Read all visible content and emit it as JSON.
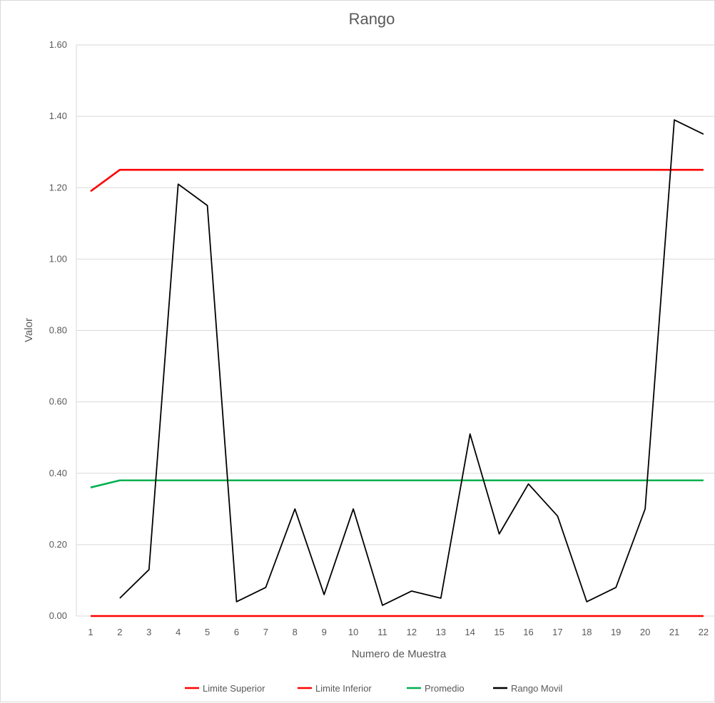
{
  "chart_data": {
    "type": "line",
    "title": "Rango",
    "xlabel": "Numero de Muestra",
    "ylabel": "Valor",
    "ylim": [
      0,
      1.6
    ],
    "yticks": [
      "0.00",
      "0.20",
      "0.40",
      "0.60",
      "0.80",
      "1.00",
      "1.20",
      "1.40",
      "1.60"
    ],
    "x": [
      1,
      2,
      3,
      4,
      5,
      6,
      7,
      8,
      9,
      10,
      11,
      12,
      13,
      14,
      15,
      16,
      17,
      18,
      19,
      20,
      21,
      22
    ],
    "grid": true,
    "legend_position": "bottom",
    "series": [
      {
        "name": "Limite Superior",
        "color": "#ff0000",
        "values": [
          1.19,
          1.25,
          1.25,
          1.25,
          1.25,
          1.25,
          1.25,
          1.25,
          1.25,
          1.25,
          1.25,
          1.25,
          1.25,
          1.25,
          1.25,
          1.25,
          1.25,
          1.25,
          1.25,
          1.25,
          1.25,
          1.25
        ]
      },
      {
        "name": "Limite Inferior",
        "color": "#ff0000",
        "values": [
          0,
          0,
          0,
          0,
          0,
          0,
          0,
          0,
          0,
          0,
          0,
          0,
          0,
          0,
          0,
          0,
          0,
          0,
          0,
          0,
          0,
          0
        ]
      },
      {
        "name": "Promedio",
        "color": "#00b050",
        "values": [
          0.36,
          0.38,
          0.38,
          0.38,
          0.38,
          0.38,
          0.38,
          0.38,
          0.38,
          0.38,
          0.38,
          0.38,
          0.38,
          0.38,
          0.38,
          0.38,
          0.38,
          0.38,
          0.38,
          0.38,
          0.38,
          0.38
        ]
      },
      {
        "name": "Rango Movil",
        "color": "#000000",
        "values": [
          null,
          0.05,
          0.13,
          1.21,
          1.15,
          0.04,
          0.08,
          0.3,
          0.06,
          0.3,
          0.03,
          0.07,
          0.05,
          0.51,
          0.23,
          0.37,
          0.28,
          0.04,
          0.08,
          0.3,
          1.39,
          1.35
        ]
      }
    ]
  }
}
